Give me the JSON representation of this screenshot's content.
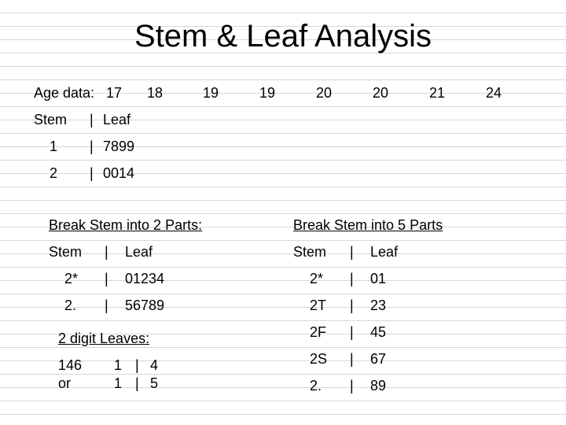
{
  "title": "Stem & Leaf Analysis",
  "age_data": {
    "label": "Age data:",
    "values": [
      "17",
      "18",
      "19",
      "19",
      "20",
      "20",
      "21",
      "24"
    ]
  },
  "basic_plot": {
    "header": {
      "stem": "Stem",
      "sep": "|",
      "leaf": "Leaf"
    },
    "rows": [
      {
        "stem": "1",
        "sep": "|",
        "leaf": "7899"
      },
      {
        "stem": "2",
        "sep": "|",
        "leaf": "0014"
      }
    ]
  },
  "two_parts": {
    "heading": "Break Stem into 2 Parts:",
    "header": {
      "stem": "Stem",
      "sep": "|",
      "leaf": "Leaf"
    },
    "rows": [
      {
        "stem": "2*",
        "sep": "|",
        "leaf": "01234"
      },
      {
        "stem": "2.",
        "sep": "|",
        "leaf": "56789"
      }
    ]
  },
  "two_digit": {
    "heading": "2 digit Leaves:",
    "lines": [
      {
        "left": "146",
        "stem": "1",
        "sep": "|",
        "leaf": "4"
      },
      {
        "left": "or",
        "stem": "1",
        "sep": "|",
        "leaf": "5"
      }
    ]
  },
  "five_parts": {
    "heading": "Break Stem into 5 Parts",
    "header": {
      "stem": "Stem",
      "sep": "|",
      "leaf": "Leaf"
    },
    "rows": [
      {
        "stem": "2*",
        "sep": "|",
        "leaf": "01"
      },
      {
        "stem": "2T",
        "sep": "|",
        "leaf": "23"
      },
      {
        "stem": "2F",
        "sep": "|",
        "leaf": "45"
      },
      {
        "stem": "2S",
        "sep": "|",
        "leaf": "67"
      },
      {
        "stem": "2.",
        "sep": "|",
        "leaf": "89"
      }
    ]
  }
}
